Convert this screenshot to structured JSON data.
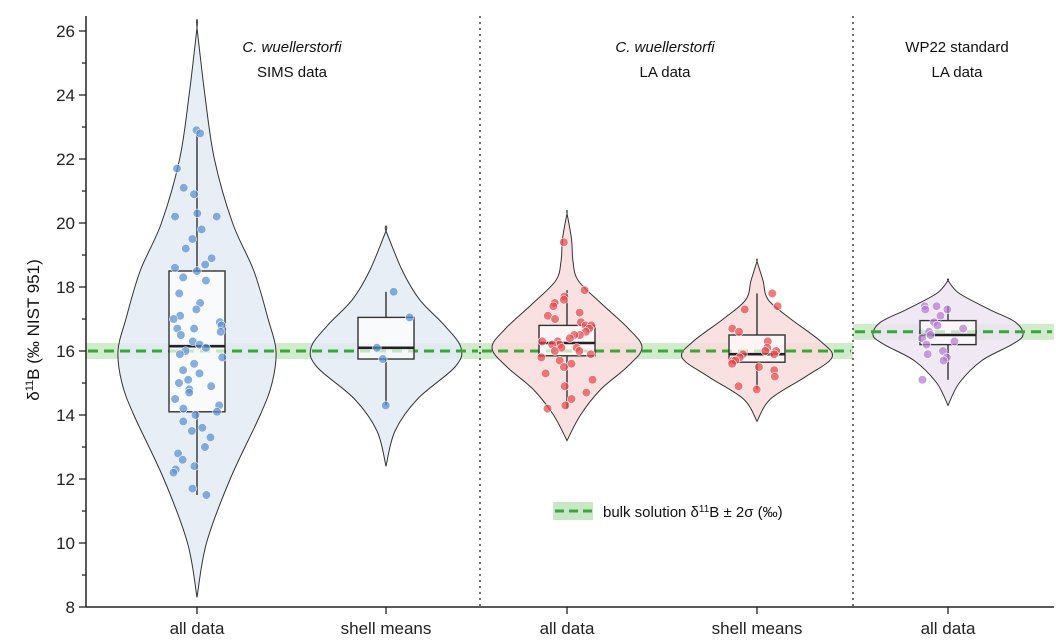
{
  "chart_data": {
    "type": "violin",
    "y_axis": {
      "label_prefix": "δ",
      "label_sup": "11",
      "label_suffix": "B (‰ NIST 951)",
      "ylim": [
        8,
        26.5
      ],
      "ticks": [
        8,
        10,
        12,
        14,
        16,
        18,
        20,
        22,
        24,
        26
      ]
    },
    "categories": [
      "all data",
      "shell means",
      "all data",
      "shell means",
      "all data"
    ],
    "panels": [
      {
        "title_line1": "C. wuellerstorfi",
        "title_line2": "SIMS data",
        "italic_line1": true,
        "categories": [
          0,
          1
        ]
      },
      {
        "title_line1": "C. wuellerstorfi",
        "title_line2": "LA data",
        "italic_line1": true,
        "categories": [
          2,
          3
        ]
      },
      {
        "title_line1": "WP22 standard",
        "title_line2": "LA data",
        "italic_line1": false,
        "categories": [
          4
        ]
      }
    ],
    "series": [
      {
        "category": "all data",
        "panel": "SIMS",
        "color": "#5b8fd0",
        "fill": "#e3ebf4",
        "box": {
          "q1": 14.1,
          "median": 16.15,
          "q3": 18.5,
          "whisker_low": 11.5,
          "whisker_high": 22.9
        },
        "violin": {
          "min": 8.3,
          "max": 26.1,
          "profile": [
            [
              8.3,
              0.0
            ],
            [
              10,
              0.12
            ],
            [
              12,
              0.42
            ],
            [
              14,
              0.8
            ],
            [
              15,
              0.95
            ],
            [
              16,
              1.0
            ],
            [
              17,
              0.9
            ],
            [
              18.5,
              0.72
            ],
            [
              20,
              0.45
            ],
            [
              22,
              0.22
            ],
            [
              24,
              0.1
            ],
            [
              26.1,
              0.0
            ]
          ]
        },
        "points": [
          22.9,
          22.8,
          21.7,
          21.1,
          20.9,
          20.3,
          20.2,
          20.2,
          19.8,
          19.5,
          19.2,
          18.9,
          18.7,
          18.6,
          18.5,
          18.3,
          18.2,
          17.8,
          17.5,
          17.3,
          17.1,
          17.0,
          16.9,
          16.8,
          16.7,
          16.7,
          16.6,
          16.5,
          16.3,
          16.2,
          16.1,
          16.0,
          15.9,
          15.8,
          15.6,
          15.4,
          15.3,
          15.1,
          15.0,
          14.9,
          14.8,
          14.7,
          14.5,
          14.3,
          14.2,
          14.1,
          14.0,
          13.8,
          13.6,
          13.5,
          13.3,
          13.0,
          12.8,
          12.6,
          12.4,
          12.3,
          12.2,
          11.7,
          11.5
        ]
      },
      {
        "category": "shell means",
        "panel": "SIMS",
        "color": "#5b8fd0",
        "fill": "#e3ebf4",
        "box": {
          "q1": 15.75,
          "median": 16.1,
          "q3": 17.05,
          "whisker_low": 14.3,
          "whisker_high": 17.85
        },
        "violin": {
          "min": 12.4,
          "max": 19.75,
          "profile": [
            [
              12.4,
              0.0
            ],
            [
              13.5,
              0.12
            ],
            [
              14.5,
              0.42
            ],
            [
              15.5,
              0.92
            ],
            [
              16.1,
              1.0
            ],
            [
              16.8,
              0.78
            ],
            [
              17.6,
              0.45
            ],
            [
              18.5,
              0.22
            ],
            [
              19.75,
              0.0
            ]
          ]
        },
        "points": [
          17.85,
          17.05,
          16.1,
          15.75,
          14.3
        ]
      },
      {
        "category": "all data",
        "panel": "LA",
        "color": "#e8484e",
        "fill": "#f9dcdc",
        "box": {
          "q1": 15.85,
          "median": 16.25,
          "q3": 16.8,
          "whisker_low": 14.2,
          "whisker_high": 17.9
        },
        "violin": {
          "min": 13.2,
          "max": 20.3,
          "profile": [
            [
              13.2,
              0.0
            ],
            [
              14,
              0.18
            ],
            [
              14.8,
              0.45
            ],
            [
              15.5,
              0.8
            ],
            [
              16.1,
              1.0
            ],
            [
              16.7,
              0.82
            ],
            [
              17.5,
              0.45
            ],
            [
              18.2,
              0.15
            ],
            [
              18.8,
              0.08
            ],
            [
              19.5,
              0.06
            ],
            [
              20.3,
              0.0
            ]
          ]
        },
        "points": [
          19.4,
          17.9,
          17.7,
          17.6,
          17.5,
          17.4,
          17.2,
          17.1,
          17.0,
          16.9,
          16.8,
          16.8,
          16.7,
          16.6,
          16.5,
          16.5,
          16.4,
          16.3,
          16.3,
          16.2,
          16.2,
          16.1,
          16.1,
          16.0,
          16.0,
          15.9,
          15.8,
          15.7,
          15.6,
          15.5,
          15.3,
          15.1,
          14.9,
          14.7,
          14.5,
          14.3,
          14.2
        ]
      },
      {
        "category": "shell means",
        "panel": "LA",
        "color": "#e8484e",
        "fill": "#f9dcdc",
        "box": {
          "q1": 15.65,
          "median": 15.9,
          "q3": 16.5,
          "whisker_low": 14.8,
          "whisker_high": 17.8
        },
        "violin": {
          "min": 13.8,
          "max": 18.8,
          "profile": [
            [
              13.8,
              0.0
            ],
            [
              14.5,
              0.18
            ],
            [
              15.2,
              0.65
            ],
            [
              15.8,
              1.0
            ],
            [
              16.3,
              0.85
            ],
            [
              17.0,
              0.45
            ],
            [
              17.6,
              0.15
            ],
            [
              18.2,
              0.08
            ],
            [
              18.8,
              0.0
            ]
          ]
        },
        "points": [
          17.8,
          17.4,
          17.3,
          16.7,
          16.6,
          16.3,
          16.1,
          16.0,
          16.0,
          15.9,
          15.9,
          15.8,
          15.7,
          15.7,
          15.6,
          15.5,
          15.4,
          15.2,
          14.9,
          14.8
        ]
      },
      {
        "category": "all data",
        "panel": "WP22",
        "color": "#b37bd0",
        "fill": "#ede4f1",
        "box": {
          "q1": 16.2,
          "median": 16.5,
          "q3": 16.95,
          "whisker_low": 15.1,
          "whisker_high": 17.4
        },
        "violin": {
          "min": 14.3,
          "max": 18.2,
          "profile": [
            [
              14.3,
              0.0
            ],
            [
              15.0,
              0.15
            ],
            [
              15.7,
              0.45
            ],
            [
              16.2,
              0.85
            ],
            [
              16.5,
              1.0
            ],
            [
              16.9,
              0.9
            ],
            [
              17.3,
              0.55
            ],
            [
              17.8,
              0.15
            ],
            [
              18.2,
              0.0
            ]
          ]
        },
        "points": [
          17.4,
          17.4,
          17.3,
          17.3,
          17.1,
          16.9,
          16.8,
          16.7,
          16.6,
          16.5,
          16.4,
          16.3,
          16.2,
          16.0,
          15.9,
          15.8,
          15.7,
          15.1
        ]
      }
    ],
    "reference_bands": [
      {
        "value": 16.0,
        "band": 0.25,
        "panels": [
          "SIMS",
          "LA"
        ]
      },
      {
        "value": 16.6,
        "band": 0.25,
        "panels": [
          "WP22"
        ]
      }
    ],
    "legend": {
      "text_prefix": "bulk solution  δ",
      "text_sup": "11",
      "text_suffix": "B  ± 2σ (‰)",
      "placement": "lower-center-right"
    },
    "colors": {
      "reference": "#3aa63a",
      "band": "#c9e7c4",
      "axis": "#222222"
    }
  }
}
